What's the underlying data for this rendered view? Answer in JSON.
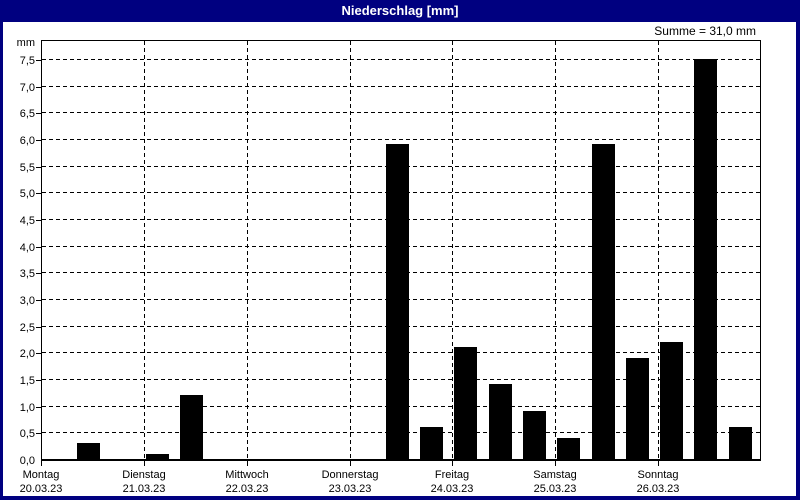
{
  "window": {
    "title": "Niederschlag [mm]"
  },
  "header": {
    "sum_label": "Summe = 31,0 mm"
  },
  "chart_data": {
    "type": "bar",
    "title": "Niederschlag [mm]",
    "ylabel": "mm",
    "unit": "mm",
    "sum_text": "Summe = 31,0 mm",
    "sum_mm": 31.0,
    "ylim": [
      0,
      7.9
    ],
    "y_tick_step": 0.5,
    "y_tick_labels": [
      "0,0",
      "0,5",
      "1,0",
      "1,5",
      "2,0",
      "2,5",
      "3,0",
      "3,5",
      "4,0",
      "4,5",
      "5,0",
      "5,5",
      "6,0",
      "6,5",
      "7,0",
      "7,5"
    ],
    "grid": true,
    "legend": false,
    "days": [
      {
        "name": "Montag",
        "date": "20.03.23"
      },
      {
        "name": "Dienstag",
        "date": "21.03.23"
      },
      {
        "name": "Mittwoch",
        "date": "22.03.23"
      },
      {
        "name": "Donnerstag",
        "date": "23.03.23"
      },
      {
        "name": "Freitag",
        "date": "24.03.23"
      },
      {
        "name": "Samstag",
        "date": "25.03.23"
      },
      {
        "name": "Sonntag",
        "date": "26.03.23"
      }
    ],
    "slots_per_day": 3,
    "bars": [
      {
        "day": 0,
        "slot": 1,
        "value": 0.3
      },
      {
        "day": 1,
        "slot": 0,
        "value": 0.1
      },
      {
        "day": 1,
        "slot": 1,
        "value": 1.2
      },
      {
        "day": 3,
        "slot": 1,
        "value": 5.9
      },
      {
        "day": 3,
        "slot": 2,
        "value": 0.6
      },
      {
        "day": 4,
        "slot": 0,
        "value": 2.1
      },
      {
        "day": 4,
        "slot": 1,
        "value": 1.4
      },
      {
        "day": 4,
        "slot": 2,
        "value": 0.9
      },
      {
        "day": 5,
        "slot": 0,
        "value": 0.4
      },
      {
        "day": 5,
        "slot": 1,
        "value": 5.9
      },
      {
        "day": 5,
        "slot": 2,
        "value": 1.9
      },
      {
        "day": 6,
        "slot": 0,
        "value": 2.2
      },
      {
        "day": 6,
        "slot": 1,
        "value": 7.5
      },
      {
        "day": 6,
        "slot": 2,
        "value": 0.6
      }
    ]
  },
  "colors": {
    "titlebar": "#000080",
    "titlebar_text": "#ffffff",
    "window_border": "#000080",
    "bar": "#000000",
    "grid": "#000000",
    "background": "#ffffff"
  }
}
